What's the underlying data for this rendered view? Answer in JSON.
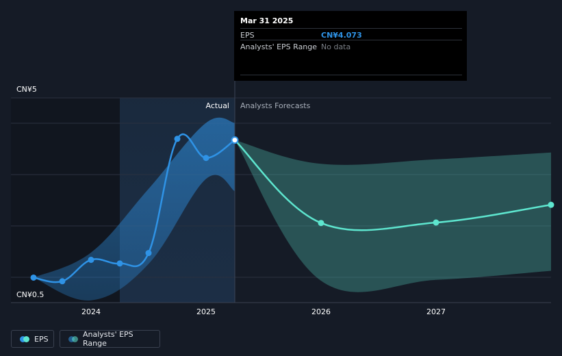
{
  "chart_data": {
    "type": "line",
    "title": "",
    "currency_prefix": "CN¥",
    "y_axis": {
      "min": 0.5,
      "max": 5,
      "top_label": "CN¥5",
      "bottom_label": "CN¥0.5"
    },
    "x_axis": {
      "ticks": [
        {
          "label": "2024",
          "value": 2024.0
        },
        {
          "label": "2025",
          "value": 2025.0
        },
        {
          "label": "2026",
          "value": 2026.0
        },
        {
          "label": "2027",
          "value": 2027.0
        }
      ]
    },
    "divider_x": 2025.25,
    "highlight_start_x": 2024.25,
    "section_labels": {
      "actual": "Actual",
      "forecast": "Analysts Forecasts"
    },
    "series": [
      {
        "name": "EPS (actual)",
        "color": "#2f93e6",
        "x": [
          2023.5,
          2023.75,
          2024.0,
          2024.25,
          2024.5,
          2024.75,
          2025.0,
          2025.25
        ],
        "y": [
          1.05,
          0.97,
          1.44,
          1.36,
          1.59,
          4.1,
          3.68,
          4.073
        ]
      },
      {
        "name": "EPS (forecast)",
        "color": "#5ee6cf",
        "x": [
          2025.25,
          2026.0,
          2027.0,
          2028.0
        ],
        "y": [
          4.073,
          2.25,
          2.26,
          2.65
        ]
      }
    ],
    "ranges": [
      {
        "name": "Analysts' EPS Range (historical)",
        "color": "#2f93e6",
        "x": [
          2023.5,
          2024.0,
          2024.5,
          2025.0,
          2025.25
        ],
        "low": [
          1.05,
          0.55,
          1.35,
          3.22,
          2.95
        ],
        "high": [
          1.05,
          1.6,
          3.0,
          4.45,
          4.45
        ]
      },
      {
        "name": "Analysts' EPS Range (forecast)",
        "color": "#5ee6cf",
        "x": [
          2025.25,
          2026.0,
          2027.0,
          2028.0
        ],
        "low": [
          4.073,
          0.98,
          1.0,
          1.2
        ],
        "high": [
          4.073,
          3.55,
          3.65,
          3.8
        ]
      }
    ],
    "tooltip": {
      "date": "Mar 31 2025",
      "eps_label": "EPS",
      "eps_value": "CN¥4.073",
      "range_label": "Analysts' EPS Range",
      "range_value": "No data"
    },
    "legend": [
      {
        "label": "EPS",
        "colors": [
          "#2f93e6",
          "#5ee6cf"
        ]
      },
      {
        "label": "Analysts' EPS Range",
        "colors": [
          "#2f93e6",
          "#5ee6cf"
        ]
      }
    ]
  }
}
